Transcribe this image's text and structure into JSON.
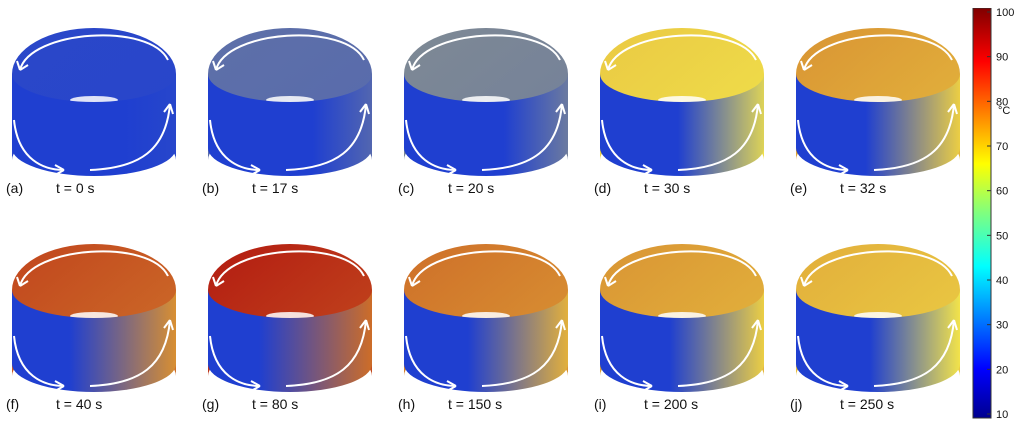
{
  "panels": [
    {
      "label": "(a)",
      "time": "t = 0 s",
      "level": 0.02
    },
    {
      "label": "(b)",
      "time": "t = 17 s",
      "level": 0.12
    },
    {
      "label": "(c)",
      "time": "t = 20 s",
      "level": 0.18
    },
    {
      "label": "(d)",
      "time": "t = 30 s",
      "level": 0.45
    },
    {
      "label": "(e)",
      "time": "t = 32 s",
      "level": 0.55
    },
    {
      "label": "(f)",
      "time": "t = 40 s",
      "level": 0.7
    },
    {
      "label": "(g)",
      "time": "t = 80 s",
      "level": 0.78
    },
    {
      "label": "(h)",
      "time": "t = 150 s",
      "level": 0.62
    },
    {
      "label": "(i)",
      "time": "t = 200 s",
      "level": 0.55
    },
    {
      "label": "(j)",
      "time": "t = 250 s",
      "level": 0.5
    }
  ],
  "colorbar": {
    "unit": "°C",
    "ticks": [
      "100",
      "90",
      "80",
      "70",
      "60",
      "50",
      "40",
      "30",
      "20",
      "10"
    ],
    "min": 10,
    "max": 100
  },
  "colors": {
    "cold": "#1f3fd0",
    "mid": "#f2e34a",
    "hot": "#b0100e",
    "arrow": "#ffffff"
  }
}
